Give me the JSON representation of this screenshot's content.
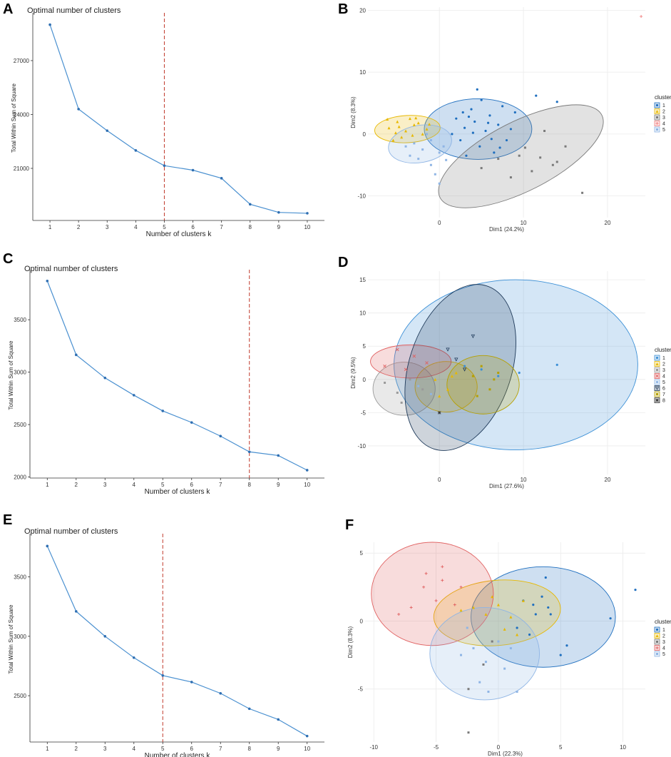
{
  "panel_letters": [
    "A",
    "B",
    "C",
    "D",
    "E",
    "F"
  ],
  "colors": {
    "line": "#4a90d0",
    "point": "#2f6fb2",
    "optimal_line": "#c0392b",
    "grid": "#ebebeb"
  },
  "chart_data": [
    {
      "panel": "A",
      "type": "line",
      "title": "Optimal number of clusters",
      "xlabel": "Number of clusters k",
      "ylabel": "Total Within Sum of Square",
      "x": [
        1,
        2,
        3,
        4,
        5,
        6,
        7,
        8,
        9,
        10
      ],
      "values": [
        29000,
        24300,
        23100,
        22000,
        21150,
        20900,
        20450,
        19000,
        18550,
        18500
      ],
      "ylim": [
        18100,
        29500
      ],
      "yticks": [
        21000,
        24000,
        27000
      ],
      "optimal_k": 5
    },
    {
      "panel": "B",
      "type": "scatter",
      "xlabel": "Dim1 (24.2%)",
      "ylabel": "Dim2 (8.3%)",
      "xlim": [
        -8.5,
        24.5
      ],
      "ylim": [
        -13.5,
        20.5
      ],
      "xticks": [
        0,
        10,
        20
      ],
      "yticks": [
        -10,
        0,
        10,
        20
      ],
      "legend_title": "cluster",
      "clusters": [
        {
          "label": "1",
          "color": "#1f6fbf",
          "shape": "circle",
          "ellipse": [
            4.6,
            0.8,
            6.4,
            4.9,
            0
          ],
          "points": [
            [
              3.0,
              1.0
            ],
            [
              4.2,
              2.0
            ],
            [
              5.5,
              0.5
            ],
            [
              6.0,
              3.0
            ],
            [
              2.5,
              -1.0
            ],
            [
              7.0,
              1.5
            ],
            [
              4.8,
              -2.0
            ],
            [
              3.8,
              4.0
            ],
            [
              8.0,
              -1.0
            ],
            [
              5.0,
              5.5
            ],
            [
              2.0,
              2.5
            ],
            [
              6.5,
              -3.0
            ],
            [
              4.5,
              7.2
            ],
            [
              9.0,
              3.5
            ],
            [
              1.5,
              0.0
            ],
            [
              7.5,
              4.5
            ],
            [
              3.2,
              -3.5
            ],
            [
              5.8,
              1.8
            ],
            [
              8.5,
              0.8
            ],
            [
              11.5,
              6.2
            ],
            [
              14.0,
              5.2
            ],
            [
              3.5,
              2.8
            ],
            [
              6.2,
              -0.8
            ],
            [
              4.0,
              0.2
            ],
            [
              2.8,
              3.5
            ],
            [
              7.2,
              -2.2
            ]
          ]
        },
        {
          "label": "2",
          "color": "#e7b800",
          "shape": "triangle",
          "ellipse": [
            -3.8,
            0.8,
            3.9,
            2.2,
            -3
          ],
          "points": [
            [
              -6.0,
              1.0
            ],
            [
              -5.0,
              2.0
            ],
            [
              -4.0,
              0.5
            ],
            [
              -3.0,
              1.5
            ],
            [
              -2.0,
              0.0
            ],
            [
              -4.5,
              -0.5
            ],
            [
              -3.5,
              2.5
            ],
            [
              -5.5,
              -1.0
            ],
            [
              -2.5,
              1.8
            ],
            [
              -1.5,
              0.8
            ],
            [
              -4.8,
              1.2
            ],
            [
              -3.2,
              -0.2
            ],
            [
              -6.2,
              2.4
            ],
            [
              -2.8,
              2.6
            ],
            [
              -1.2,
              1.6
            ],
            [
              -5.2,
              0.2
            ]
          ]
        },
        {
          "label": "3",
          "color": "#7a7a7a",
          "shape": "square",
          "ellipse": [
            9.7,
            -3.6,
            10.8,
            5.6,
            -27
          ],
          "points": [
            [
              9.5,
              -3.5
            ],
            [
              10.2,
              -2.2
            ],
            [
              11.0,
              -6.0
            ],
            [
              13.5,
              -5.0
            ],
            [
              14.0,
              -4.5
            ],
            [
              17.0,
              -9.5
            ],
            [
              12.5,
              0.5
            ],
            [
              8.5,
              -7.0
            ],
            [
              7.0,
              -4.0
            ],
            [
              12.0,
              -3.8
            ],
            [
              5.0,
              -5.5
            ],
            [
              15.0,
              -2.0
            ]
          ]
        },
        {
          "label": "4",
          "color": "#f08080",
          "shape": "plus",
          "ellipse": null,
          "points": [
            [
              24.0,
              19.0
            ]
          ]
        },
        {
          "label": "5",
          "color": "#8fb5e5",
          "shape": "square",
          "ellipse": [
            -2.3,
            -1.6,
            3.8,
            3.0,
            -10
          ],
          "points": [
            [
              -3.0,
              -1.5
            ],
            [
              -2.0,
              -2.5
            ],
            [
              -1.0,
              -1.0
            ],
            [
              0.0,
              -3.0
            ],
            [
              -4.0,
              -2.0
            ],
            [
              -2.5,
              -4.0
            ],
            [
              -1.5,
              0.0
            ],
            [
              0.5,
              -2.0
            ],
            [
              -3.5,
              -3.5
            ],
            [
              0.0,
              -8.0
            ],
            [
              -1.0,
              -5.0
            ],
            [
              0.8,
              -4.2
            ],
            [
              -0.5,
              -6.5
            ]
          ]
        }
      ]
    },
    {
      "panel": "C",
      "type": "line",
      "title": "Optimal number of clusters",
      "xlabel": "Number of clusters k",
      "ylabel": "Total Within Sum of Square",
      "x": [
        1,
        2,
        3,
        4,
        5,
        6,
        7,
        8,
        9,
        10
      ],
      "values": [
        3870,
        3165,
        2945,
        2780,
        2630,
        2520,
        2390,
        2240,
        2205,
        2065
      ],
      "ylim": [
        1990,
        3950
      ],
      "yticks": [
        2000,
        2500,
        3000,
        3500
      ],
      "optimal_k": 8
    },
    {
      "panel": "D",
      "type": "scatter",
      "xlabel": "Dim1 (27.6%)",
      "ylabel": "Dim2 (9.5%)",
      "xlim": [
        -8.5,
        24.5
      ],
      "ylim": [
        -14.3,
        16.3
      ],
      "xticks": [
        0,
        10,
        20
      ],
      "yticks": [
        -10,
        -5,
        0,
        5,
        10,
        15
      ],
      "legend_title": "cluster",
      "clusters": [
        {
          "label": "1",
          "color": "#3a8fd6",
          "shape": "circle",
          "ellipse": [
            9.1,
            2.2,
            14.5,
            12.8,
            0
          ],
          "points": [
            [
              3.0,
              2.0
            ],
            [
              5.0,
              1.5
            ],
            [
              9.5,
              1.0
            ],
            [
              14.0,
              2.2
            ],
            [
              7.0,
              0.5
            ]
          ]
        },
        {
          "label": "2",
          "color": "#e7b800",
          "shape": "triangle",
          "ellipse": [
            0.8,
            -1.1,
            3.7,
            3.8,
            0
          ],
          "points": [
            [
              -0.5,
              0.0
            ],
            [
              1.0,
              -1.5
            ],
            [
              2.0,
              1.0
            ],
            [
              0.0,
              -2.5
            ],
            [
              1.5,
              0.5
            ]
          ]
        },
        {
          "label": "3",
          "color": "#9a9a9a",
          "shape": "square",
          "ellipse": [
            -4.2,
            -1.4,
            3.7,
            4.0,
            0
          ],
          "points": [
            [
              -6.5,
              -0.5
            ],
            [
              -5.0,
              -2.0
            ],
            [
              -3.5,
              0.0
            ],
            [
              -4.5,
              -3.5
            ],
            [
              -2.0,
              -1.5
            ]
          ]
        },
        {
          "label": "4",
          "color": "#e06060",
          "shape": "x",
          "ellipse": [
            -3.4,
            2.7,
            4.8,
            2.5,
            0
          ],
          "points": [
            [
              -5.0,
              4.5
            ],
            [
              -3.0,
              3.5
            ],
            [
              -4.0,
              1.5
            ],
            [
              -1.5,
              2.5
            ],
            [
              -6.5,
              2.0
            ]
          ]
        },
        {
          "label": "5",
          "color": "#8fb5e5",
          "shape": "circle",
          "ellipse": null,
          "points": [
            [
              -2.5,
              -1.0
            ],
            [
              -1.0,
              -2.2
            ]
          ]
        },
        {
          "label": "6",
          "color": "#1f3a5a",
          "shape": "triangle-down",
          "ellipse": [
            2.5,
            1.8,
            6.1,
            12.9,
            18
          ],
          "points": [
            [
              4.0,
              6.5
            ],
            [
              2.0,
              3.0
            ],
            [
              1.0,
              4.5
            ],
            [
              3.0,
              1.5
            ]
          ]
        },
        {
          "label": "7",
          "color": "#b5a000",
          "shape": "square",
          "ellipse": [
            5.2,
            -0.8,
            4.3,
            4.4,
            0
          ],
          "points": [
            [
              5.0,
              2.0
            ],
            [
              4.0,
              0.5
            ],
            [
              6.0,
              -1.5
            ],
            [
              7.0,
              1.0
            ],
            [
              4.5,
              -2.5
            ],
            [
              6.5,
              0.0
            ]
          ]
        },
        {
          "label": "8",
          "color": "#333333",
          "shape": "asterisk",
          "ellipse": null,
          "points": [
            [
              0.0,
              -5.0
            ]
          ]
        }
      ]
    },
    {
      "panel": "E",
      "type": "line",
      "title": "Optimal number of clusters",
      "xlabel": "Number of clusters k",
      "ylabel": "Total Within Sum of Square",
      "x": [
        1,
        2,
        3,
        4,
        5,
        6,
        7,
        8,
        9,
        10
      ],
      "values": [
        3760,
        3210,
        3000,
        2820,
        2670,
        2615,
        2520,
        2390,
        2300,
        2160
      ],
      "ylim": [
        2110,
        3840
      ],
      "yticks": [
        2500,
        3000,
        3500
      ],
      "optimal_k": 5
    },
    {
      "panel": "F",
      "type": "scatter",
      "xlabel": "Dim1 (22.3%)",
      "ylabel": "Dim2 (8.3%)",
      "xlim": [
        -10.7,
        11.8
      ],
      "ylim": [
        -8.9,
        5.8
      ],
      "xticks": [
        -10,
        -5,
        0,
        5,
        10
      ],
      "yticks": [
        -5,
        0,
        5
      ],
      "legend_title": "cluster",
      "clusters": [
        {
          "label": "1",
          "color": "#1f6fbf",
          "shape": "circle",
          "ellipse": [
            3.6,
            0.3,
            5.8,
            3.7,
            0
          ],
          "points": [
            [
              2.0,
              1.5
            ],
            [
              3.0,
              0.5
            ],
            [
              4.0,
              1.0
            ],
            [
              2.5,
              -1.0
            ],
            [
              4.2,
              0.5
            ],
            [
              3.5,
              1.8
            ],
            [
              1.5,
              -0.5
            ],
            [
              5.0,
              -2.5
            ],
            [
              5.5,
              -1.8
            ],
            [
              9.0,
              0.2
            ],
            [
              11.0,
              2.3
            ],
            [
              3.8,
              3.2
            ],
            [
              2.8,
              1.2
            ]
          ]
        },
        {
          "label": "2",
          "color": "#e7b800",
          "shape": "triangle",
          "ellipse": [
            -0.1,
            0.6,
            5.1,
            2.4,
            -5
          ],
          "points": [
            [
              -2.0,
              1.0
            ],
            [
              -1.0,
              0.5
            ],
            [
              0.0,
              1.2
            ],
            [
              1.0,
              0.3
            ],
            [
              2.0,
              1.5
            ],
            [
              -3.0,
              0.8
            ],
            [
              0.5,
              -0.6
            ],
            [
              1.5,
              -1.0
            ],
            [
              -0.5,
              1.8
            ]
          ]
        },
        {
          "label": "3",
          "color": "#7a7a7a",
          "shape": "square",
          "ellipse": null,
          "points": [
            [
              -2.4,
              -5.0
            ],
            [
              -2.4,
              -8.2
            ],
            [
              -0.5,
              -1.5
            ],
            [
              -1.2,
              -3.2
            ]
          ]
        },
        {
          "label": "4",
          "color": "#e06060",
          "shape": "plus",
          "ellipse": [
            -5.3,
            2.0,
            4.9,
            3.8,
            0
          ],
          "points": [
            [
              -6.0,
              2.5
            ],
            [
              -5.0,
              1.5
            ],
            [
              -4.5,
              3.0
            ],
            [
              -7.0,
              1.0
            ],
            [
              -3.5,
              1.2
            ],
            [
              -4.5,
              4.0
            ],
            [
              -8.0,
              0.5
            ],
            [
              -5.8,
              3.5
            ],
            [
              -3.0,
              2.5
            ]
          ]
        },
        {
          "label": "5",
          "color": "#8fb5e5",
          "shape": "square",
          "ellipse": [
            -1.1,
            -2.4,
            4.4,
            3.4,
            0
          ],
          "points": [
            [
              -2.0,
              -2.0
            ],
            [
              -1.0,
              -3.0
            ],
            [
              0.0,
              -1.5
            ],
            [
              -3.0,
              -2.5
            ],
            [
              -1.5,
              -4.5
            ],
            [
              1.0,
              -2.0
            ],
            [
              -2.5,
              -0.5
            ],
            [
              0.5,
              -3.5
            ],
            [
              -0.8,
              -5.2
            ],
            [
              1.5,
              -5.2
            ]
          ]
        }
      ]
    }
  ]
}
